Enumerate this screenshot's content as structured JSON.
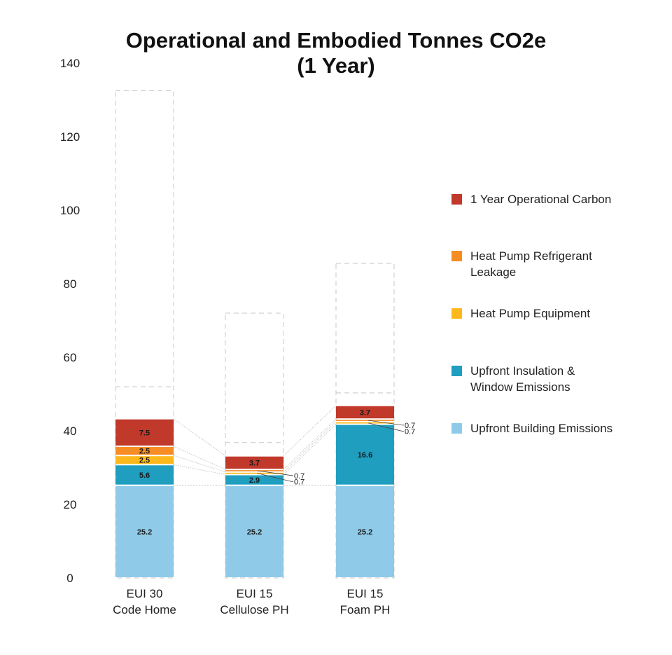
{
  "chart_data": {
    "type": "bar",
    "stacked": true,
    "title": "Operational and Embodied Tonnes CO2e",
    "subtitle": "(1 Year)",
    "xlabel": "",
    "ylabel": "",
    "ylim": [
      0,
      140
    ],
    "yticks": [
      0,
      20,
      40,
      60,
      80,
      100,
      120,
      140
    ],
    "grid": false,
    "legend_position": "right",
    "categories": [
      [
        "EUI 30",
        "Code Home"
      ],
      [
        "EUI 15",
        "Cellulose PH"
      ],
      [
        "EUI 15",
        "Foam PH"
      ]
    ],
    "series": [
      {
        "name": "Upfront Building Emissions",
        "color": "#8fcbe8",
        "values": [
          25.2,
          25.2,
          25.2
        ]
      },
      {
        "name": "Upfront Insulation & Window Emissions",
        "color": "#1f9ec0",
        "values": [
          5.6,
          2.9,
          16.6
        ]
      },
      {
        "name": "Heat Pump Equipment",
        "color": "#fdb81c",
        "values": [
          2.5,
          0.7,
          0.7
        ]
      },
      {
        "name": "Heat Pump Refrigerant Leakage",
        "color": "#f68c24",
        "values": [
          2.5,
          0.7,
          0.7
        ]
      },
      {
        "name": "1 Year Operational Carbon",
        "color": "#c0392b",
        "values": [
          7.5,
          3.7,
          3.7
        ]
      }
    ],
    "dashed_outlines": [
      {
        "levels": [
          52,
          132.5
        ]
      },
      {
        "levels": [
          36.8,
          72
        ]
      },
      {
        "levels": [
          50.3,
          85.5
        ]
      }
    ]
  },
  "legend_order": [
    4,
    3,
    2,
    1,
    0
  ]
}
